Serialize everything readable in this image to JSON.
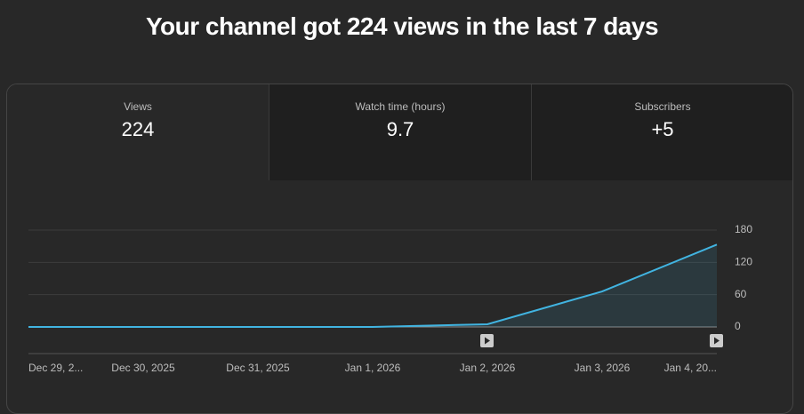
{
  "header": {
    "title": "Your channel got 224 views in the last 7 days"
  },
  "tabs": [
    {
      "label": "Views",
      "value": "224"
    },
    {
      "label": "Watch time (hours)",
      "value": "9.7"
    },
    {
      "label": "Subscribers",
      "value": "+5"
    }
  ],
  "chart_data": {
    "type": "line",
    "categories": [
      "Dec 29, 2...",
      "Dec 30, 2025",
      "Dec 31, 2025",
      "Jan 1, 2026",
      "Jan 2, 2026",
      "Jan 3, 2026",
      "Jan 4, 20..."
    ],
    "series": [
      {
        "name": "Views",
        "color": "#41b4e1",
        "values": [
          0,
          0,
          0,
          0,
          5,
          66,
          153
        ]
      }
    ],
    "ylim": [
      0,
      180
    ],
    "yticks": [
      0,
      60,
      120,
      180
    ],
    "grid": true
  }
}
